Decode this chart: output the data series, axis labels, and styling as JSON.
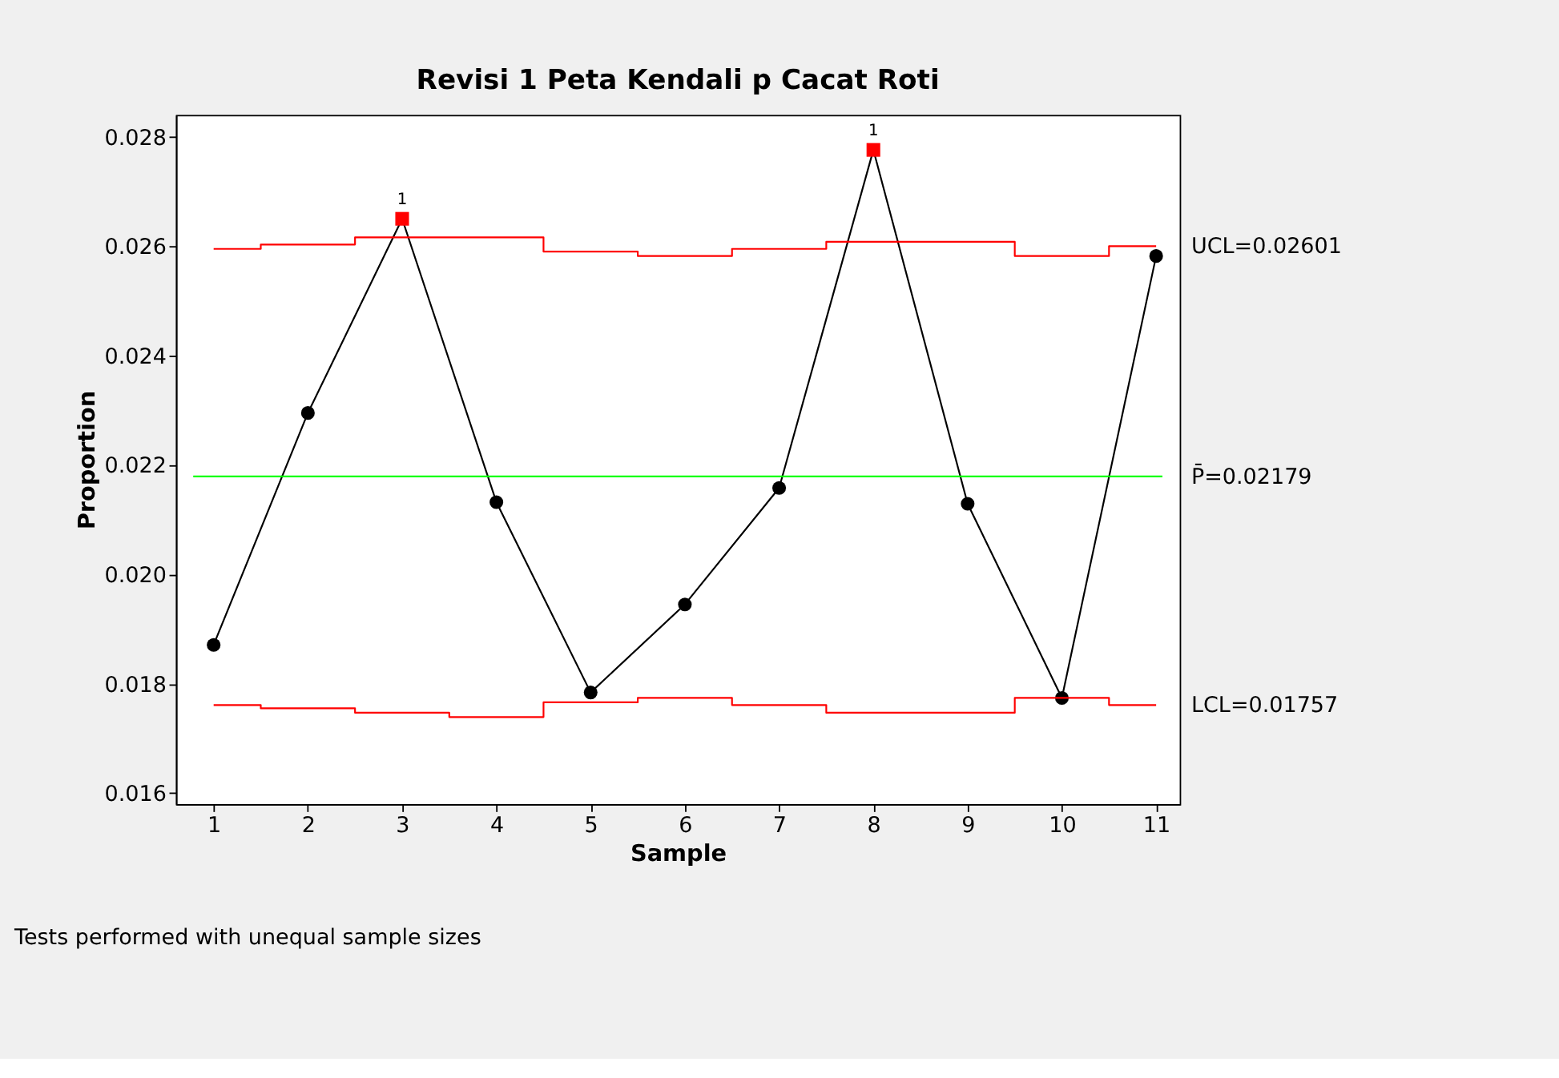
{
  "chart_data": {
    "type": "line",
    "title": "Revisi 1 Peta Kendali p Cacat Roti",
    "xlabel": "Sample",
    "ylabel": "Proportion",
    "x": [
      1,
      2,
      3,
      4,
      5,
      6,
      7,
      8,
      9,
      10,
      11
    ],
    "xlim": [
      0.6,
      11.25
    ],
    "xticks": [
      1,
      2,
      3,
      4,
      5,
      6,
      7,
      8,
      9,
      10,
      11
    ],
    "ylim": [
      0.0158,
      0.0284
    ],
    "yticks": [
      0.016,
      0.018,
      {
        "value": 0.02,
        "label": "0.020"
      },
      0.022,
      0.024,
      0.026,
      0.028
    ],
    "series": [
      {
        "color": "#000000",
        "marker": "circle",
        "values": [
          0.01871,
          0.02295,
          0.0265,
          0.02132,
          0.01784,
          0.01945,
          0.02158,
          0.02776,
          0.02129,
          0.01774,
          0.02582
        ],
        "colors": [
          "#000000",
          "#000000",
          "#ff0000",
          "#000000",
          "#000000",
          "#000000",
          "#000000",
          "#ff0000",
          "#000000",
          "#000000",
          "#000000"
        ]
      },
      {
        "type": "step",
        "name": "UCL=0.02601",
        "color": "#ff0000",
        "marker": "none",
        "values": [
          0.02595,
          0.02603,
          0.02616,
          0.02616,
          0.0259,
          0.02582,
          0.02595,
          0.02608,
          0.02608,
          0.02582,
          0.026
        ]
      },
      {
        "type": "step",
        "name": "LCL=0.01757",
        "color": "#ff0000",
        "marker": "none",
        "values": [
          0.01761,
          0.01755,
          0.01747,
          0.01739,
          0.01766,
          0.01774,
          0.01761,
          0.01747,
          0.01747,
          0.01774,
          0.01761
        ]
      }
    ],
    "ref_lines": [
      {
        "axis": "y",
        "value": 0.02179,
        "label": "P̄=0.02179",
        "color": "#00ff00"
      }
    ],
    "annotations": [
      {
        "text": "1",
        "x": 3,
        "y": 0.0265
      },
      {
        "text": "1",
        "x": 8,
        "y": 0.02776
      },
      "Tests performed with unequal sample sizes"
    ],
    "grid": false,
    "legend": false
  }
}
